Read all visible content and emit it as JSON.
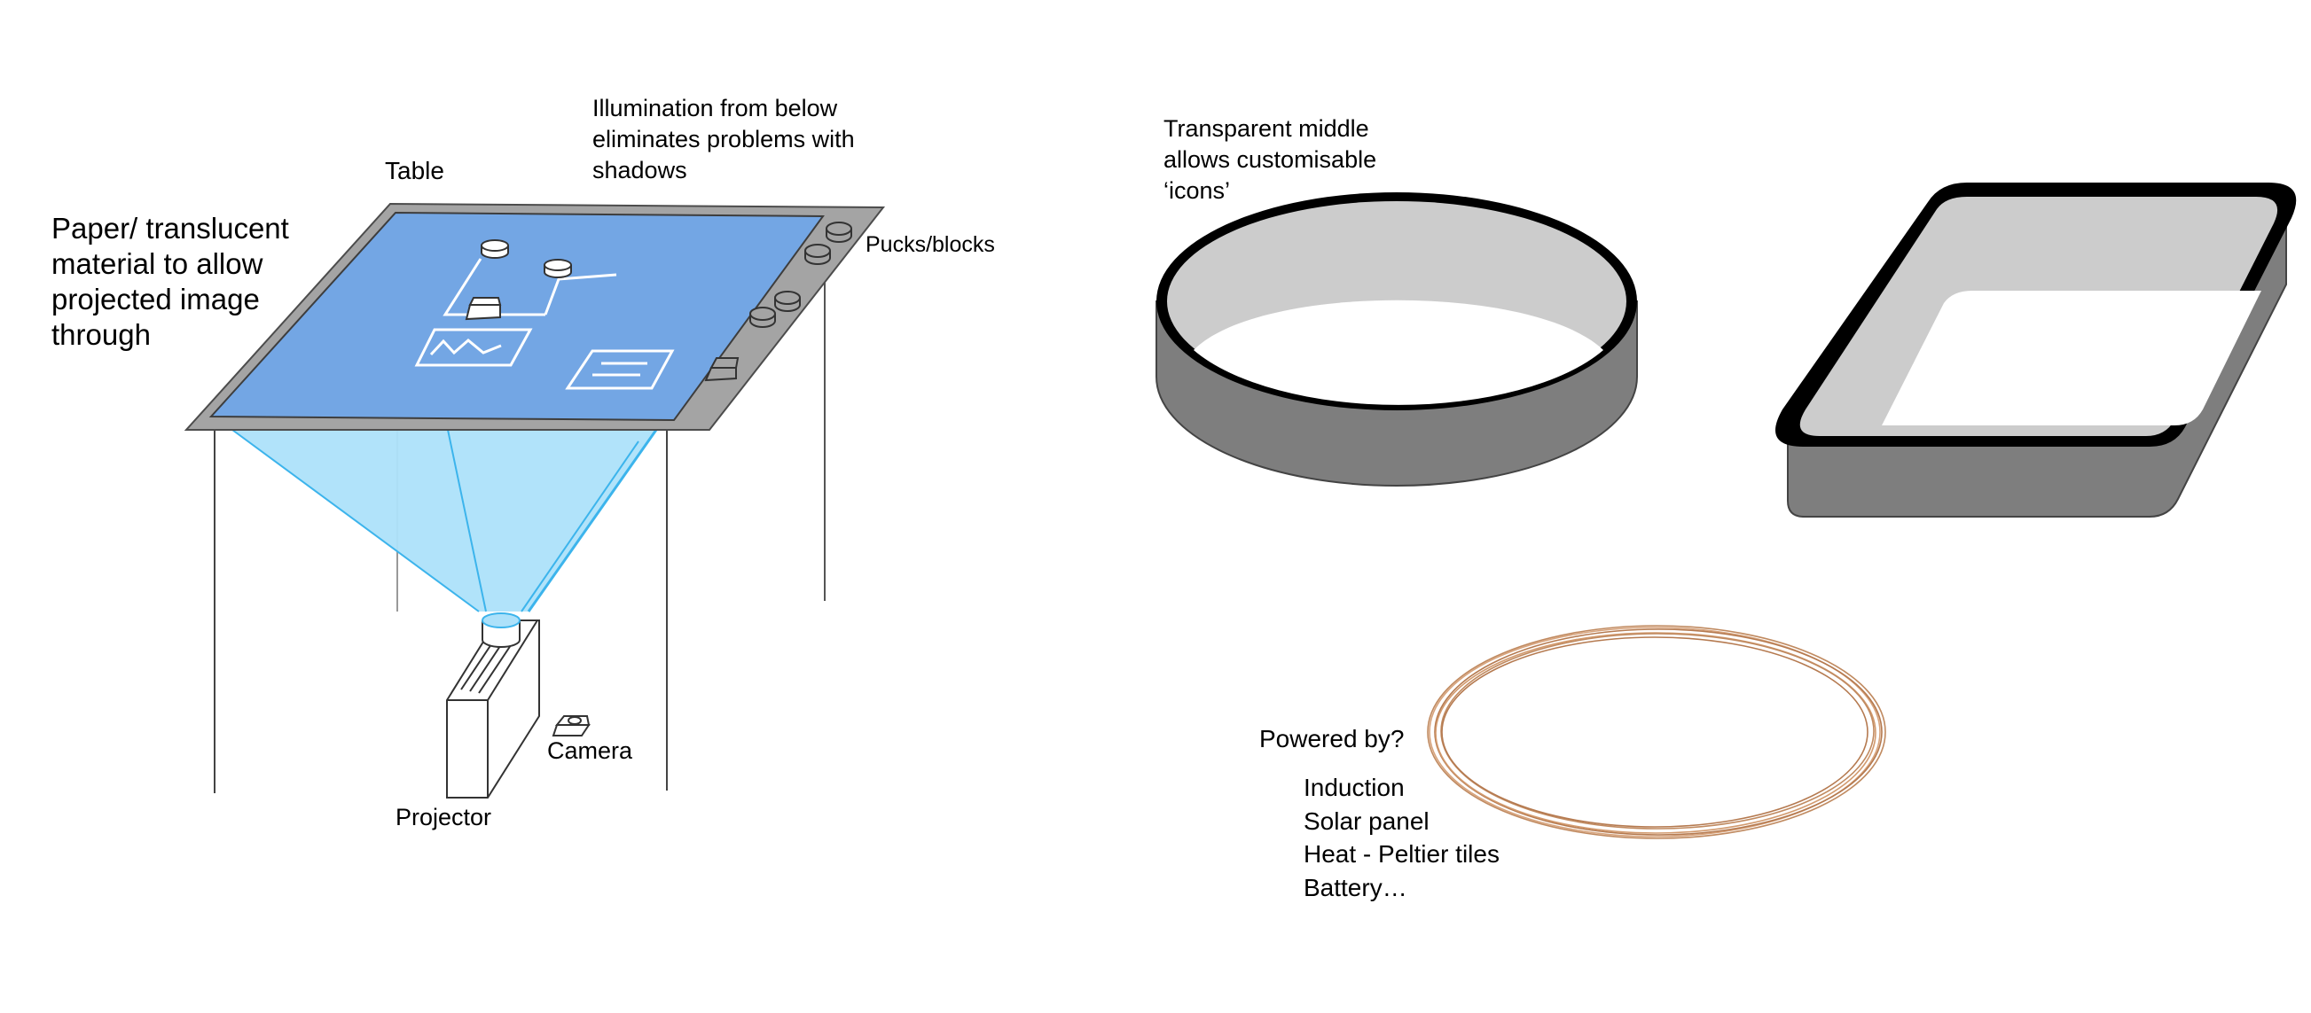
{
  "labels": {
    "table": "Table",
    "illumination": [
      "Illumination from below",
      "eliminates problems with",
      "shadows"
    ],
    "paper": [
      "Paper/ translucent",
      "material to allow",
      "projected image",
      "through"
    ],
    "pucks": "Pucks/blocks",
    "camera": "Camera",
    "projector": "Projector",
    "transparent": [
      "Transparent middle",
      "allows customisable",
      "‘icons’"
    ],
    "powered_by": "Powered by?",
    "power_options": [
      "Induction",
      "Solar panel",
      "Heat - Peltier tiles",
      "Battery…"
    ]
  },
  "colors": {
    "table_surface": "#73a6e4",
    "table_frame": "#a4a4a4",
    "projection_light": "#ade1fa",
    "projection_edge": "#3cb4ec",
    "puck_side": "#7e7e7e",
    "puck_inner": "#cccccc",
    "puck_rim": "#000000",
    "coil": "#c08a60"
  }
}
